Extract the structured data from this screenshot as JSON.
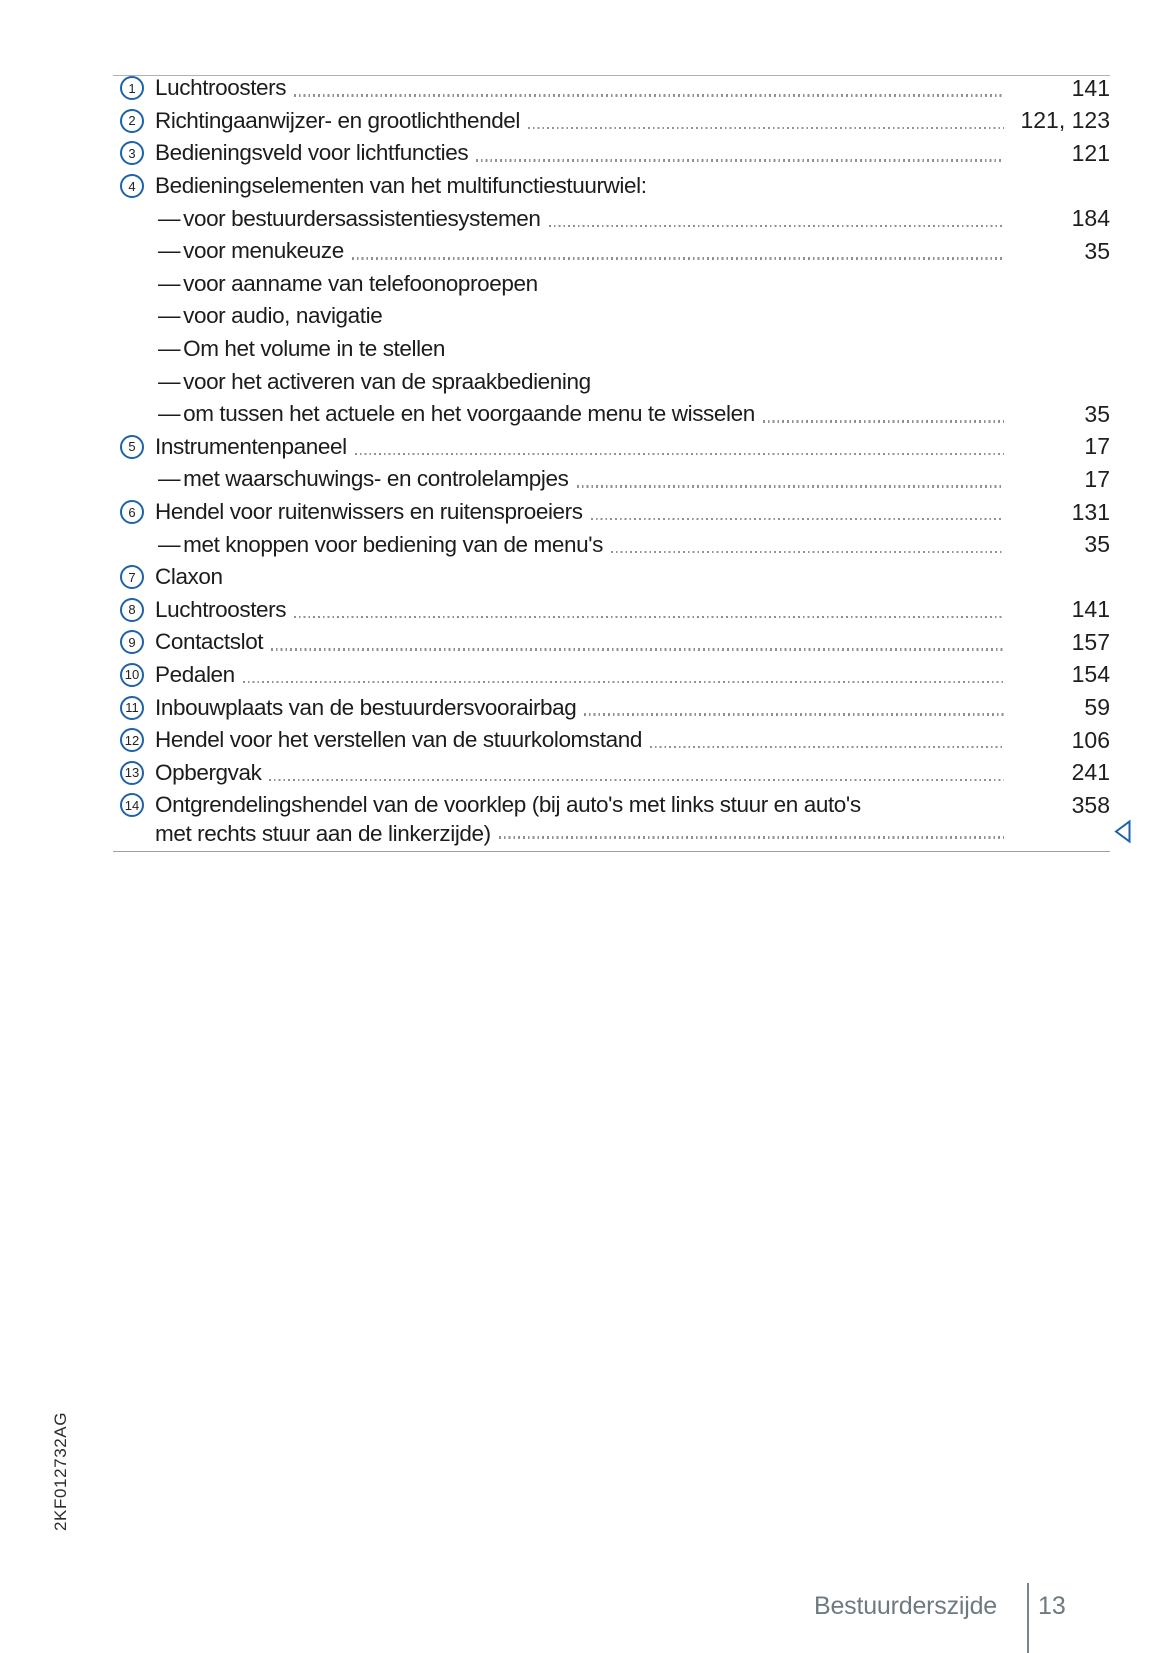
{
  "ui": {
    "dash": "—"
  },
  "colors": {
    "accent_blue": "#1e62a8",
    "text": "#1c1c1c",
    "leader_gray": "#8d9296",
    "footer_gray": "#6e7a82"
  },
  "document": {
    "code": "2KF012732AG"
  },
  "footer": {
    "section": "Bestuurderszijde",
    "page_number": "13"
  },
  "toc": {
    "items": [
      {
        "type": "main",
        "num": "1",
        "label": "Luchtroosters",
        "page": "141",
        "leader": true
      },
      {
        "type": "main",
        "num": "2",
        "label": "Richtingaanwijzer- en grootlichthendel",
        "page": "121, 123",
        "leader": true
      },
      {
        "type": "main",
        "num": "3",
        "label": "Bedieningsveld voor lichtfuncties",
        "page": "121",
        "leader": true
      },
      {
        "type": "main",
        "num": "4",
        "label": "Bedieningselementen van het multifunctiestuurwiel:",
        "page": "",
        "leader": false
      },
      {
        "type": "sub",
        "label": "voor bestuurdersassistentiesystemen",
        "page": "184",
        "leader": true
      },
      {
        "type": "sub",
        "label": "voor menukeuze",
        "page": "35",
        "leader": true
      },
      {
        "type": "sub",
        "label": "voor aanname van telefoonoproepen",
        "page": "",
        "leader": false
      },
      {
        "type": "sub",
        "label": "voor audio, navigatie",
        "page": "",
        "leader": false
      },
      {
        "type": "sub",
        "label": "Om het volume in te stellen",
        "page": "",
        "leader": false
      },
      {
        "type": "sub",
        "label": "voor het activeren van de spraakbediening",
        "page": "",
        "leader": false
      },
      {
        "type": "sub",
        "label": "om tussen het actuele en het voorgaande menu te wisselen",
        "page": "35",
        "leader": true
      },
      {
        "type": "main",
        "num": "5",
        "label": "Instrumentenpaneel",
        "page": "17",
        "leader": true
      },
      {
        "type": "sub",
        "label": "met waarschuwings- en controlelampjes",
        "page": "17",
        "leader": true
      },
      {
        "type": "main",
        "num": "6",
        "label": "Hendel voor ruitenwissers en ruitensproeiers",
        "page": "131",
        "leader": true
      },
      {
        "type": "sub",
        "label": "met knoppen voor bediening van de menu's",
        "page": "35",
        "leader": true
      },
      {
        "type": "main",
        "num": "7",
        "label": "Claxon",
        "page": "",
        "leader": false
      },
      {
        "type": "main",
        "num": "8",
        "label": "Luchtroosters",
        "page": "141",
        "leader": true
      },
      {
        "type": "main",
        "num": "9",
        "label": "Contactslot",
        "page": "157",
        "leader": true
      },
      {
        "type": "main",
        "num": "10",
        "label": "Pedalen",
        "page": "154",
        "leader": true
      },
      {
        "type": "main",
        "num": "11",
        "label": "Inbouwplaats van de bestuurdersvoorairbag",
        "page": "59",
        "leader": true
      },
      {
        "type": "main",
        "num": "12",
        "label": "Hendel voor het verstellen van de stuurkolomstand",
        "page": "106",
        "leader": true
      },
      {
        "type": "main",
        "num": "13",
        "label": "Opbergvak",
        "page": "241",
        "leader": true
      },
      {
        "type": "main-wrap",
        "num": "14",
        "label": "Ontgrendelingshendel van de voorklep (bij auto's met links stuur en auto's met rechts stuur aan de linkerzijde)",
        "lines": [
          "Ontgrendelingshendel van de voorklep (bij auto's met links stuur en auto's",
          "met rechts stuur aan de linkerzijde)"
        ],
        "page": "358",
        "leader": true
      }
    ]
  }
}
